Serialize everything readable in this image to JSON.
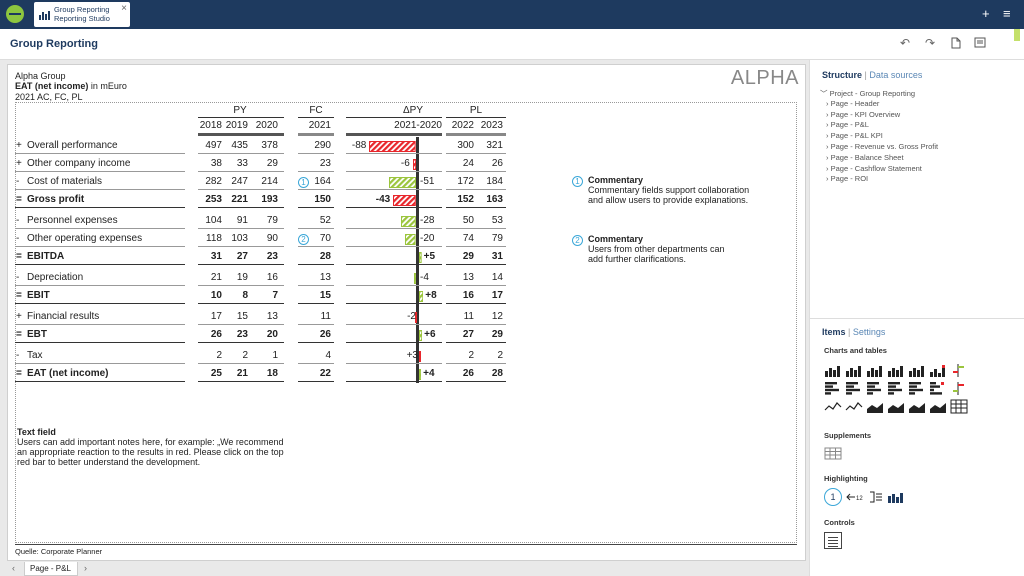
{
  "topbar": {
    "tab_title_line1": "Group Reporting",
    "tab_title_line2": "Reporting Studio",
    "tab_close": "×",
    "plus": "+",
    "menu": "≡"
  },
  "header": {
    "title": "Group Reporting",
    "undo": "↶",
    "redo": "↷"
  },
  "report": {
    "company": "Alpha Group",
    "measure_bold": "EAT (net income)",
    "measure_unit": " in mEuro",
    "scenarios": "2021 AC, FC, PL",
    "logo_text": "ALPHA",
    "source": "Quelle: Corporate Planner",
    "groups": {
      "py": "PY",
      "fc": "FC",
      "dpy": "ΔPY",
      "pl": "PL"
    },
    "years": {
      "py": [
        "2018",
        "2019",
        "2020"
      ],
      "fc": "2021",
      "dpy": "2021-2020",
      "pl": [
        "2022",
        "2023"
      ]
    },
    "rows": [
      {
        "op": "+",
        "label": "Overall performance",
        "bold": false,
        "py": [
          "497",
          "435",
          "378"
        ],
        "fc": "290",
        "delta": -88,
        "delta_label": "-88",
        "pl": [
          "300",
          "321"
        ],
        "badge": ""
      },
      {
        "op": "+",
        "label": "Other company income",
        "bold": false,
        "py": [
          "38",
          "33",
          "29"
        ],
        "fc": "23",
        "delta": -6,
        "delta_label": "-6",
        "pl": [
          "24",
          "26"
        ],
        "badge": ""
      },
      {
        "op": "-",
        "label": "Cost of materials",
        "bold": false,
        "py": [
          "282",
          "247",
          "214"
        ],
        "fc": "164",
        "delta": -51,
        "delta_label": "-51",
        "pl": [
          "172",
          "184"
        ],
        "badge": "1",
        "good": true
      },
      {
        "op": "=",
        "label": "Gross profit",
        "bold": true,
        "py": [
          "253",
          "221",
          "193"
        ],
        "fc": "150",
        "delta": -43,
        "delta_label": "-43",
        "pl": [
          "152",
          "163"
        ],
        "badge": ""
      },
      {
        "op": "-",
        "label": "Personnel expenses",
        "bold": false,
        "py": [
          "104",
          "91",
          "79"
        ],
        "fc": "52",
        "delta": -28,
        "delta_label": "-28",
        "pl": [
          "50",
          "53"
        ],
        "badge": "",
        "good": true
      },
      {
        "op": "-",
        "label": "Other operating expenses",
        "bold": false,
        "py": [
          "118",
          "103",
          "90"
        ],
        "fc": "70",
        "delta": -20,
        "delta_label": "-20",
        "pl": [
          "74",
          "79"
        ],
        "badge": "2",
        "good": true
      },
      {
        "op": "=",
        "label": "EBITDA",
        "bold": true,
        "py": [
          "31",
          "27",
          "23"
        ],
        "fc": "28",
        "delta": 5,
        "delta_label": "+5",
        "pl": [
          "29",
          "31"
        ],
        "badge": ""
      },
      {
        "op": "-",
        "label": "Depreciation",
        "bold": false,
        "py": [
          "21",
          "19",
          "16"
        ],
        "fc": "13",
        "delta": -4,
        "delta_label": "-4",
        "pl": [
          "13",
          "14"
        ],
        "badge": "",
        "good": true
      },
      {
        "op": "=",
        "label": "EBIT",
        "bold": true,
        "py": [
          "10",
          "8",
          "7"
        ],
        "fc": "15",
        "delta": 8,
        "delta_label": "+8",
        "pl": [
          "16",
          "17"
        ],
        "badge": ""
      },
      {
        "op": "+",
        "label": "Financial results",
        "bold": false,
        "py": [
          "17",
          "15",
          "13"
        ],
        "fc": "11",
        "delta": -2,
        "delta_label": "-2",
        "pl": [
          "11",
          "12"
        ],
        "badge": ""
      },
      {
        "op": "=",
        "label": "EBT",
        "bold": true,
        "py": [
          "26",
          "23",
          "20"
        ],
        "fc": "26",
        "delta": 6,
        "delta_label": "+6",
        "pl": [
          "27",
          "29"
        ],
        "badge": ""
      },
      {
        "op": "-",
        "label": "Tax",
        "bold": false,
        "py": [
          "2",
          "2",
          "1"
        ],
        "fc": "4",
        "delta": 3,
        "delta_label": "+3",
        "pl": [
          "2",
          "2"
        ],
        "badge": "",
        "good": false
      },
      {
        "op": "=",
        "label": "EAT (net income)",
        "bold": true,
        "py": [
          "25",
          "21",
          "18"
        ],
        "fc": "22",
        "delta": 4,
        "delta_label": "+4",
        "pl": [
          "26",
          "28"
        ],
        "badge": ""
      }
    ],
    "comments": [
      {
        "badge": "1",
        "title": "Commentary",
        "text1": "Commentary fields support collaboration",
        "text2": "and allow users to provide explanations."
      },
      {
        "badge": "2",
        "title": "Commentary",
        "text1": "Users from other departments can",
        "text2": "add further clarifications."
      }
    ],
    "textfield": {
      "title": "Text field",
      "body": "Users can add important notes here, for example: „We recommend an appropriate reaction to the results in red. Please click on the top red bar to better understand the development."
    },
    "colors": {
      "negative": "#e8262b",
      "positive": "#9bc53d",
      "axis": "#333333"
    }
  },
  "pagebar": {
    "tab_label": "Page - P&L",
    "prev": "‹",
    "next": "›"
  },
  "panel": {
    "tab_structure": "Structure",
    "tab_datasources": "Data sources",
    "tree_root": "Project - Group Reporting",
    "tree_items": [
      "Page - Header",
      "Page - KPI Overview",
      "Page - P&L",
      "Page - P&L KPI",
      "Page - Revenue vs. Gross Profit",
      "Page - Balance Sheet",
      "Page - Cashflow Statement",
      "Page - ROI"
    ],
    "tab_items": "Items",
    "tab_settings": "Settings",
    "sec_charts": "Charts and tables",
    "sec_supplements": "Supplements",
    "sec_highlighting": "Highlighting",
    "sec_controls": "Controls",
    "hl_circle": "1",
    "hl_num": "12"
  }
}
